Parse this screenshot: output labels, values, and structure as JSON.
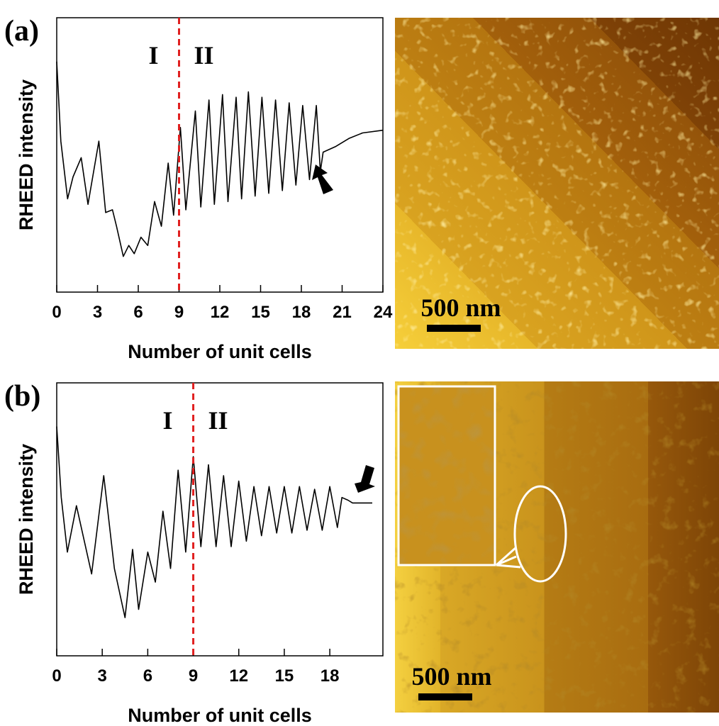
{
  "chart_data": [
    {
      "type": "line",
      "panel_label": "(a)",
      "xlabel": "Number of unit cells",
      "ylabel": "RHEED intensity",
      "xlim": [
        0,
        24
      ],
      "xticks": [
        0,
        3,
        6,
        9,
        12,
        15,
        18,
        21,
        24
      ],
      "ylim": [
        0,
        100
      ],
      "color": "#000000",
      "divider_x": 9,
      "divider_color": "#e02020",
      "annotations": [
        "I",
        "II"
      ],
      "x": [
        0,
        0.3,
        0.8,
        1.2,
        1.8,
        2.3,
        3.1,
        3.6,
        4.1,
        4.4,
        4.9,
        5.3,
        5.7,
        6.2,
        6.7,
        7.2,
        7.7,
        8.2,
        8.6,
        9.1,
        9.5,
        10.2,
        10.6,
        11.2,
        11.6,
        12.2,
        12.6,
        13.2,
        13.6,
        14.1,
        14.6,
        15.1,
        15.6,
        16.1,
        16.6,
        17.1,
        17.6,
        18.1,
        18.6,
        19.1,
        19.4,
        19.6,
        20.5,
        21.5,
        22.5,
        24
      ],
      "values": [
        84,
        55,
        34,
        42,
        49,
        32,
        55,
        29,
        30,
        24,
        13,
        17,
        14,
        20,
        17,
        33,
        24,
        47,
        28,
        60,
        30,
        66,
        31,
        70,
        32,
        72,
        33,
        71,
        34,
        73,
        35,
        71,
        36,
        70,
        37,
        69,
        39,
        68,
        41,
        68,
        44,
        51,
        53,
        56,
        58,
        59
      ]
    },
    {
      "type": "line",
      "panel_label": "(b)",
      "xlabel": "Number of unit cells",
      "ylabel": "RHEED intensity",
      "xlim": [
        0,
        21.5
      ],
      "xticks": [
        0,
        3,
        6,
        9,
        12,
        15,
        18
      ],
      "ylim": [
        0,
        100
      ],
      "color": "#000000",
      "divider_x": 9,
      "divider_color": "#e02020",
      "annotations": [
        "I",
        "II"
      ],
      "x": [
        0,
        0.3,
        0.7,
        1.3,
        2.3,
        3.1,
        3.8,
        4.5,
        5.0,
        5.4,
        6.0,
        6.5,
        7.0,
        7.5,
        8.0,
        8.5,
        9.0,
        9.5,
        10.0,
        10.5,
        11.0,
        11.5,
        12.0,
        12.5,
        13.0,
        13.5,
        14.0,
        14.5,
        15.0,
        15.5,
        16.0,
        16.5,
        17.0,
        17.5,
        18.0,
        18.5,
        18.8,
        19.2,
        19.5,
        20.8
      ],
      "values": [
        84,
        58,
        38,
        55,
        30,
        66,
        32,
        14,
        39,
        17,
        38,
        27,
        53,
        32,
        68,
        38,
        73,
        40,
        70,
        40,
        66,
        40,
        64,
        42,
        62,
        44,
        62,
        45,
        62,
        45,
        62,
        46,
        61,
        46,
        62,
        47,
        58,
        57,
        56,
        56
      ]
    }
  ],
  "images": [
    {
      "scale_bar": "500 nm"
    },
    {
      "scale_bar": "500 nm"
    }
  ]
}
